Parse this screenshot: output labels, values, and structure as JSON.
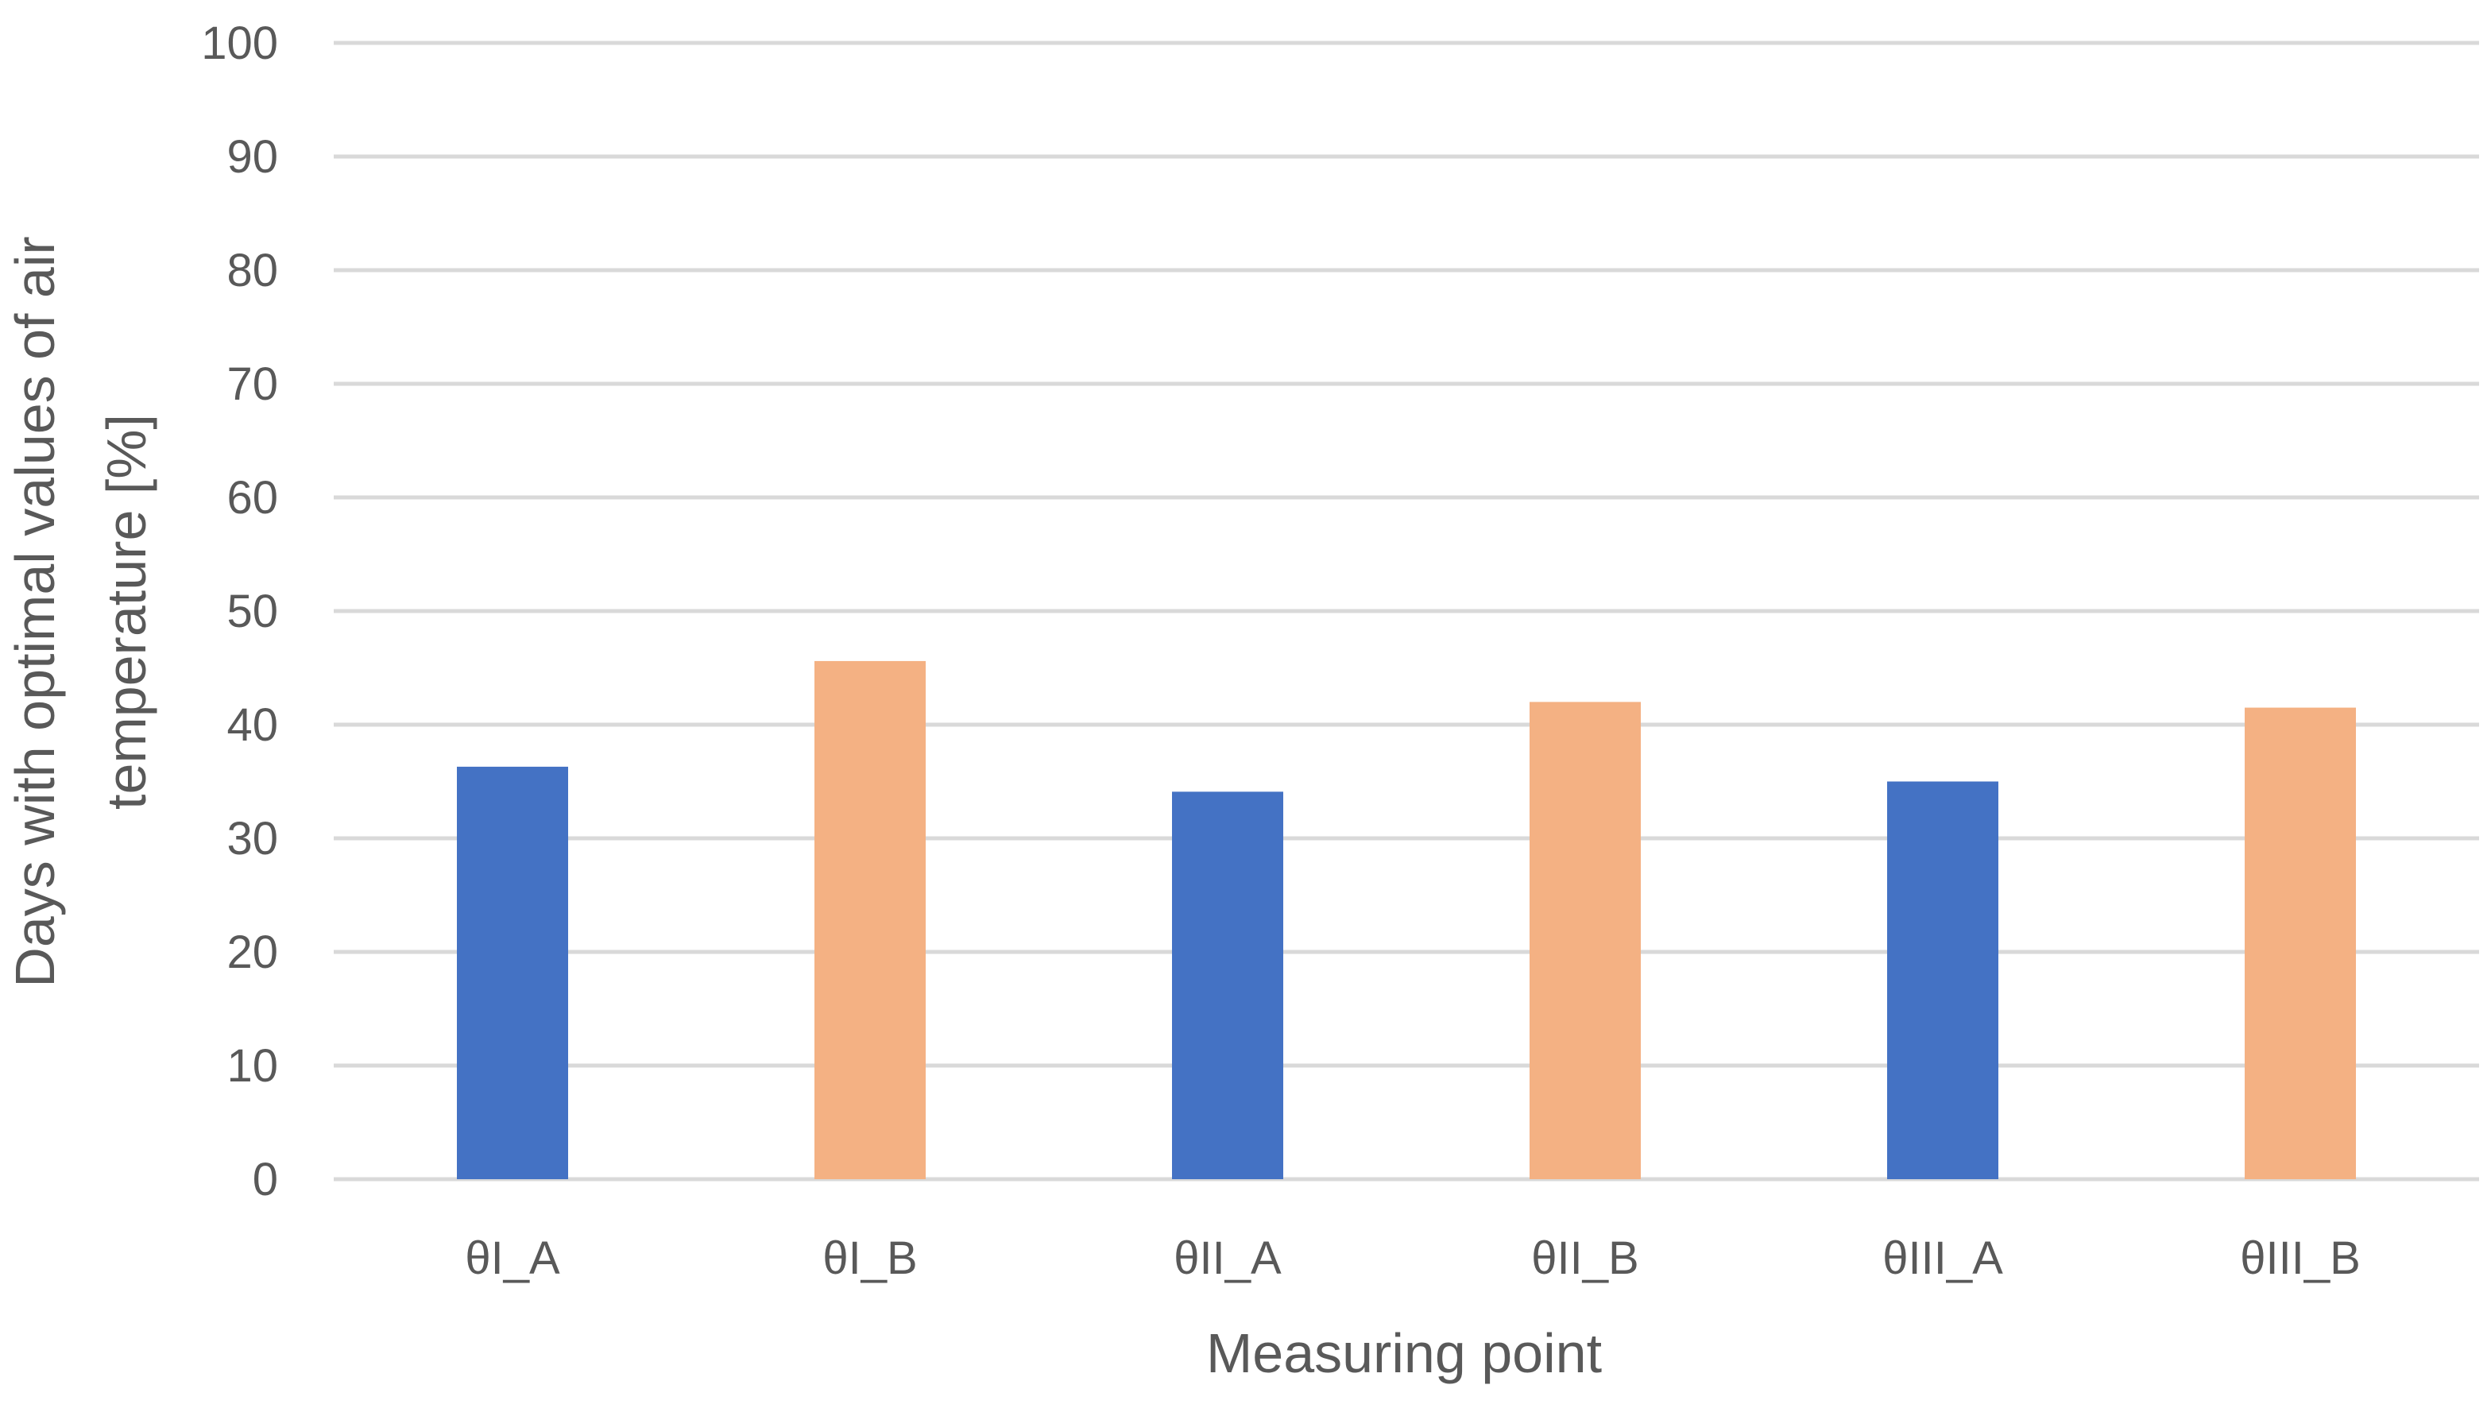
{
  "chart_data": {
    "type": "bar",
    "title": "",
    "xlabel": "Measuring point",
    "ylabel_lines": [
      "Days with optimal values of air",
      "temperature [%]"
    ],
    "categories": [
      "θI_A",
      "θI_B",
      "θII_A",
      "θII_B",
      "θIII_A",
      "θIII_B"
    ],
    "values": [
      36.3,
      45.6,
      34.1,
      42.0,
      35.0,
      41.5
    ],
    "bar_colors": [
      "#4472c4",
      "#f4b183",
      "#4472c4",
      "#f4b183",
      "#4472c4",
      "#f4b183"
    ],
    "ylim": [
      0,
      100
    ],
    "yticks": [
      "0",
      "10",
      "20",
      "30",
      "40",
      "50",
      "60",
      "70",
      "80",
      "90",
      "100"
    ],
    "grid": true,
    "legend": "none"
  }
}
